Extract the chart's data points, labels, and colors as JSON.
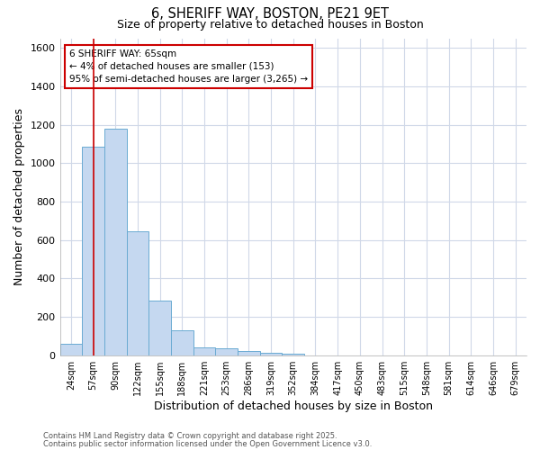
{
  "title_line1": "6, SHERIFF WAY, BOSTON, PE21 9ET",
  "title_line2": "Size of property relative to detached houses in Boston",
  "xlabel": "Distribution of detached houses by size in Boston",
  "ylabel": "Number of detached properties",
  "categories": [
    "24sqm",
    "57sqm",
    "90sqm",
    "122sqm",
    "155sqm",
    "188sqm",
    "221sqm",
    "253sqm",
    "286sqm",
    "319sqm",
    "352sqm",
    "384sqm",
    "417sqm",
    "450sqm",
    "483sqm",
    "515sqm",
    "548sqm",
    "581sqm",
    "614sqm",
    "646sqm",
    "679sqm"
  ],
  "values": [
    60,
    1085,
    1180,
    645,
    285,
    130,
    40,
    35,
    20,
    12,
    10,
    0,
    0,
    0,
    0,
    0,
    0,
    0,
    0,
    0,
    0
  ],
  "bar_color": "#c5d8f0",
  "bar_edge_color": "#6aabd2",
  "annotation_text": "6 SHERIFF WAY: 65sqm\n← 4% of detached houses are smaller (153)\n95% of semi-detached houses are larger (3,265) →",
  "annotation_box_facecolor": "#ffffff",
  "annotation_box_edgecolor": "#cc0000",
  "vline_color": "#cc0000",
  "vline_x_index": 1,
  "ylim": [
    0,
    1650
  ],
  "yticks": [
    0,
    200,
    400,
    600,
    800,
    1000,
    1200,
    1400,
    1600
  ],
  "background_color": "#ffffff",
  "plot_bg_color": "#ffffff",
  "grid_color": "#d0d8e8",
  "footer_line1": "Contains HM Land Registry data © Crown copyright and database right 2025.",
  "footer_line2": "Contains public sector information licensed under the Open Government Licence v3.0."
}
